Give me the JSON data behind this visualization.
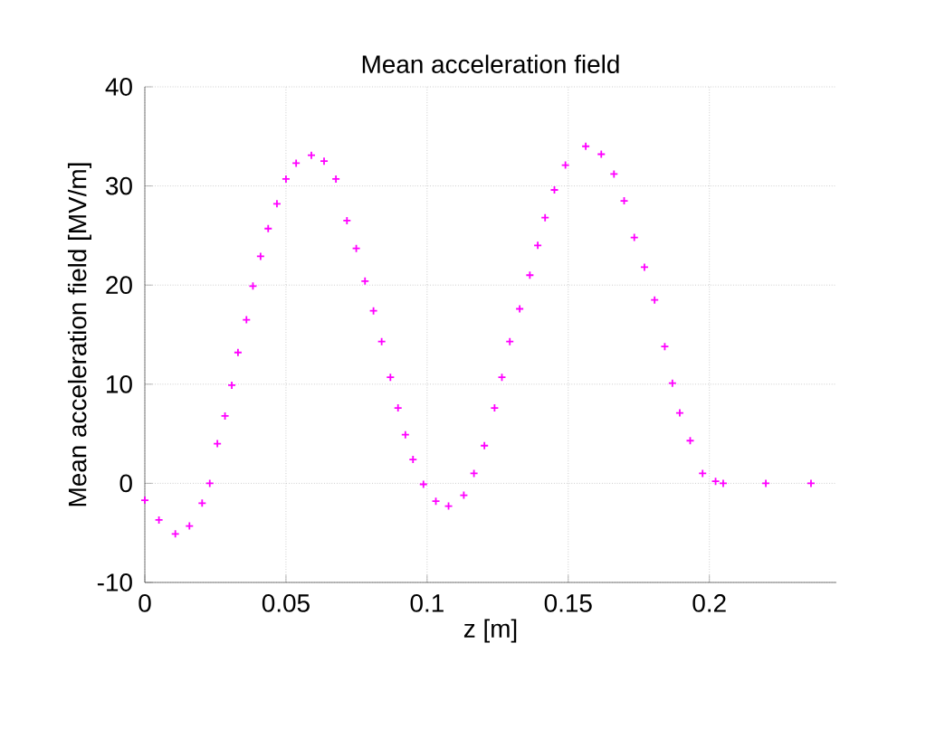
{
  "chart_data": {
    "type": "scatter",
    "title": "Mean acceleration field",
    "xlabel": "z [m]",
    "ylabel": "Mean acceleration field [MV/m]",
    "xlim": [
      0,
      0.245
    ],
    "ylim": [
      -10,
      40
    ],
    "xticks": [
      0,
      0.05,
      0.1,
      0.15,
      0.2
    ],
    "yticks": [
      -10,
      0,
      10,
      20,
      30,
      40
    ],
    "grid": true,
    "marker": "cross",
    "series": [
      {
        "color": "#ff00ff",
        "x": [
          0,
          0.005,
          0.0108,
          0.0158,
          0.0203,
          0.023,
          0.0257,
          0.0284,
          0.0308,
          0.033,
          0.036,
          0.0383,
          0.041,
          0.0437,
          0.0468,
          0.05,
          0.0536,
          0.059,
          0.0635,
          0.0677,
          0.0716,
          0.0749,
          0.078,
          0.081,
          0.0839,
          0.087,
          0.0897,
          0.0923,
          0.095,
          0.0987,
          0.1031,
          0.1076,
          0.113,
          0.1166,
          0.1203,
          0.1239,
          0.1265,
          0.1293,
          0.1328,
          0.1364,
          0.1392,
          0.1418,
          0.1451,
          0.149,
          0.1562,
          0.1617,
          0.1662,
          0.1698,
          0.1734,
          0.177,
          0.1806,
          0.1842,
          0.1869,
          0.1895,
          0.1932,
          0.1976,
          0.2022,
          0.2049,
          0.22,
          0.236
        ],
        "values": [
          -1.7,
          -3.7,
          -5.1,
          -4.3,
          -2,
          0,
          4,
          6.8,
          9.9,
          13.2,
          16.5,
          19.9,
          22.9,
          25.7,
          28.2,
          30.7,
          32.3,
          33.1,
          32.5,
          30.7,
          26.5,
          23.7,
          20.4,
          17.4,
          14.3,
          10.7,
          7.6,
          4.9,
          2.4,
          -0.1,
          -1.8,
          -2.3,
          -1.2,
          1,
          3.8,
          7.6,
          10.7,
          14.3,
          17.6,
          21,
          24,
          26.8,
          29.6,
          32.1,
          34,
          33.2,
          31.2,
          28.5,
          24.8,
          21.8,
          18.5,
          13.8,
          10.1,
          7.1,
          4.3,
          1,
          0.2,
          0,
          0,
          0
        ]
      }
    ]
  }
}
